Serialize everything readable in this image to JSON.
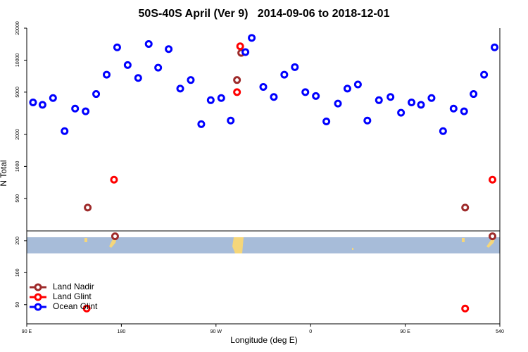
{
  "chart_data": {
    "type": "scatter",
    "title": "50S-40S April (Ver 9)   2014-09-06 to 2018-12-01",
    "xlabel": "Longitude (deg E)",
    "ylabel": "N Total",
    "xlim": [
      90,
      540
    ],
    "xticks": [
      {
        "value": 90,
        "label": "90 E"
      },
      180,
      {
        "value": 270,
        "label": "90 W"
      },
      {
        "value": 360,
        "label": "0"
      },
      {
        "value": 450,
        "label": "90 E"
      },
      540
    ],
    "ylim": [
      33,
      20000
    ],
    "log_y": true,
    "yticks": [
      50,
      100,
      200,
      500,
      1000,
      2000,
      5000,
      10000,
      20000
    ],
    "legend": "bottom-left",
    "series": [
      {
        "name": "Land Nadir",
        "color": "#9e2b2b",
        "x": [
          148,
          174,
          290,
          294,
          507,
          533
        ],
        "values": [
          410,
          220,
          6500,
          11700,
          410,
          220
        ]
      },
      {
        "name": "Land Glint",
        "color": "#ff0000",
        "x": [
          173,
          290,
          293,
          147,
          507,
          533
        ],
        "values": [
          750,
          5000,
          13500,
          46,
          46,
          750
        ]
      },
      {
        "name": "Ocean Glint",
        "color": "#0000ff",
        "x": [
          96,
          105,
          115,
          126,
          136,
          146,
          156,
          166,
          176,
          186,
          196,
          206,
          215,
          225,
          236,
          246,
          256,
          265,
          275,
          284,
          298,
          304,
          315,
          325,
          335,
          345,
          355,
          365,
          375,
          386,
          395,
          405,
          414,
          425,
          436,
          446,
          456,
          465,
          475,
          486,
          496,
          506,
          515,
          525,
          535
        ],
        "values": [
          4000,
          3800,
          4400,
          2150,
          3500,
          3300,
          4800,
          7300,
          13200,
          9000,
          6800,
          14200,
          8500,
          12700,
          5400,
          6500,
          2500,
          4200,
          4400,
          2700,
          11900,
          16200,
          5600,
          4500,
          7300,
          8600,
          5000,
          4600,
          2650,
          3900,
          5400,
          5900,
          2700,
          4200,
          4500,
          3200,
          4000,
          3800,
          4400,
          2150,
          3500,
          3300,
          4800,
          7300,
          13200
        ]
      }
    ]
  }
}
